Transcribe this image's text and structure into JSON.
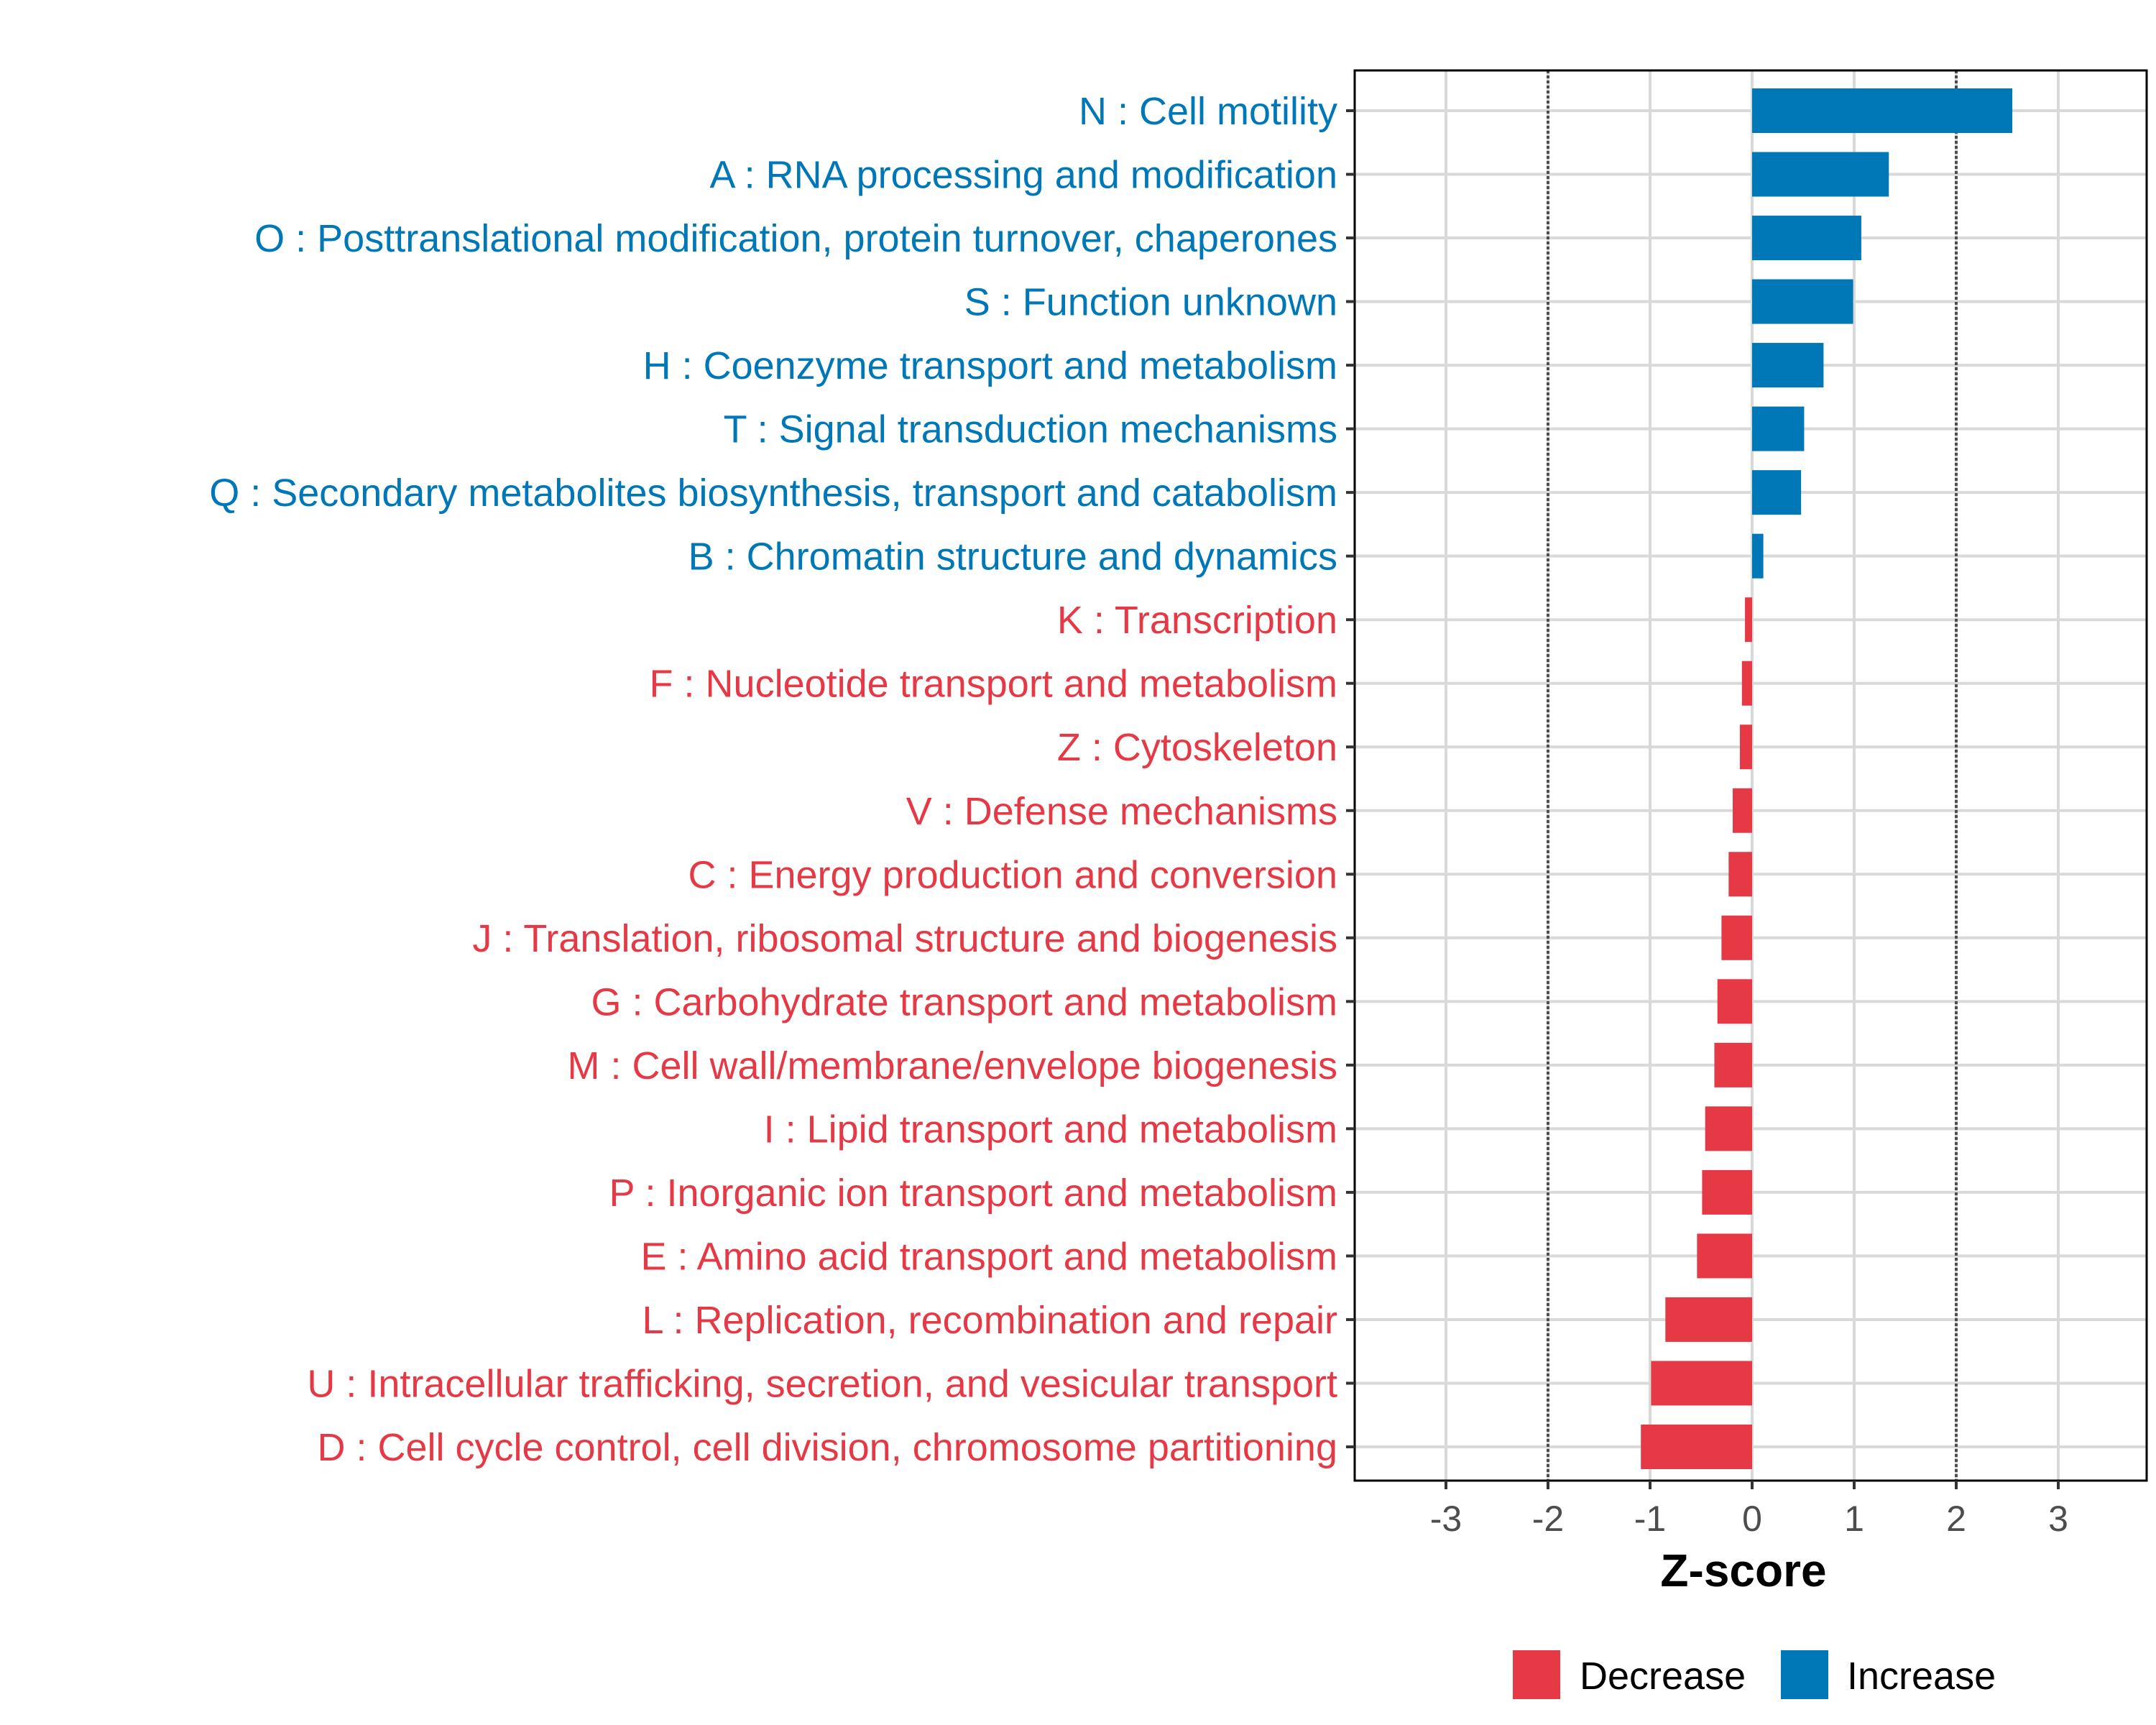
{
  "chart_data": {
    "type": "bar",
    "orientation": "horizontal",
    "title": "",
    "xlabel": "Z-score",
    "ylabel": "",
    "xlim": [
      -3.9,
      3.9
    ],
    "xticks": [
      -3,
      -2,
      -1,
      0,
      1,
      2,
      3
    ],
    "xtick_labels": [
      "-3",
      "-2",
      "-1",
      "0",
      "1",
      "2",
      "3"
    ],
    "grid": true,
    "reference_lines": [
      -2,
      2
    ],
    "legend": {
      "position": "bottom",
      "entries": [
        {
          "name": "Decrease",
          "color": "#E63946"
        },
        {
          "name": "Increase",
          "color": "#0077B6"
        }
      ]
    },
    "categories": [
      "N : Cell motility",
      "A : RNA processing and modification",
      "O : Posttranslational modification, protein turnover, chaperones",
      "S : Function unknown",
      "H : Coenzyme transport and metabolism",
      "T : Signal transduction mechanisms",
      "Q : Secondary metabolites biosynthesis, transport and catabolism",
      "B : Chromatin structure and dynamics",
      "K : Transcription",
      "F : Nucleotide transport and metabolism",
      "Z : Cytoskeleton",
      "V : Defense mechanisms",
      "C : Energy production and conversion",
      "J : Translation, ribosomal structure and biogenesis",
      "G : Carbohydrate transport and metabolism",
      "M : Cell wall/membrane/envelope biogenesis",
      "I : Lipid transport and metabolism",
      "P : Inorganic ion transport and metabolism",
      "E : Amino acid transport and metabolism",
      "L : Replication, recombination and repair",
      "U : Intracellular trafficking, secretion, and vesicular transport",
      "D : Cell cycle control, cell division, chromosome partitioning"
    ],
    "values": [
      2.55,
      1.34,
      1.07,
      0.99,
      0.7,
      0.51,
      0.48,
      0.11,
      -0.07,
      -0.1,
      -0.12,
      -0.19,
      -0.23,
      -0.3,
      -0.34,
      -0.37,
      -0.46,
      -0.49,
      -0.54,
      -0.85,
      -0.99,
      -1.09
    ],
    "groups": [
      "Increase",
      "Increase",
      "Increase",
      "Increase",
      "Increase",
      "Increase",
      "Increase",
      "Increase",
      "Decrease",
      "Decrease",
      "Decrease",
      "Decrease",
      "Decrease",
      "Decrease",
      "Decrease",
      "Decrease",
      "Decrease",
      "Decrease",
      "Decrease",
      "Decrease",
      "Decrease",
      "Decrease"
    ]
  },
  "colors": {
    "Increase": "#0077B6",
    "Decrease": "#E63946",
    "grid": "#D9D9D9",
    "reference_line": "#4D4D4D"
  }
}
